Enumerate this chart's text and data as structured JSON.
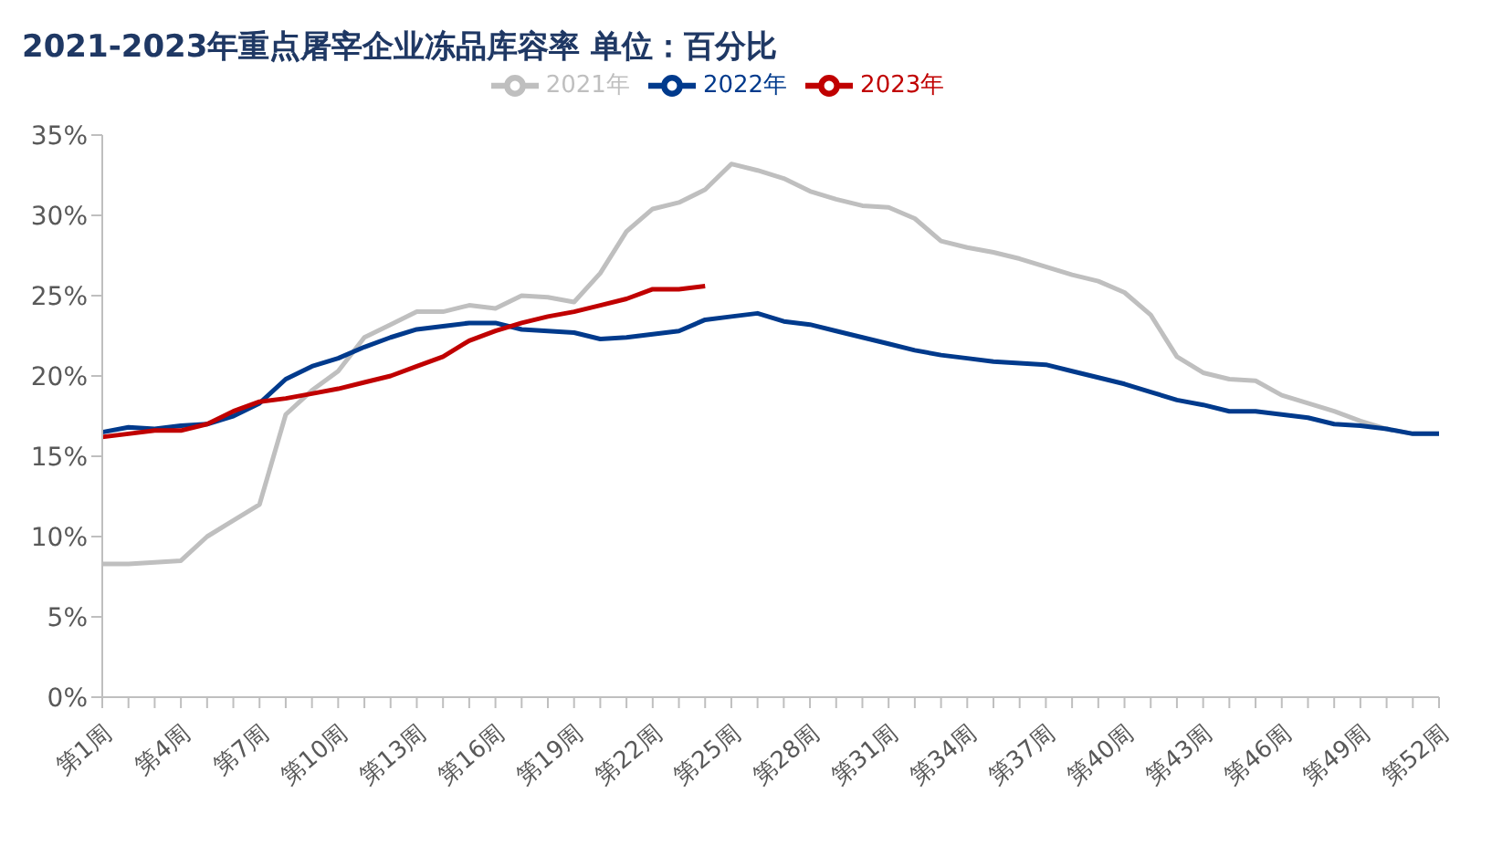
{
  "chart_data": {
    "type": "line",
    "title": "2021-2023年重点屠宰企业冻品库容率 单位：百分比",
    "categories": [
      "第1周",
      null,
      null,
      "第4周",
      null,
      null,
      "第7周",
      null,
      null,
      "第10周",
      null,
      null,
      "第13周",
      null,
      null,
      "第16周",
      null,
      null,
      "第19周",
      null,
      null,
      "第22周",
      null,
      null,
      "第25周",
      null,
      null,
      "第28周",
      null,
      null,
      "第31周",
      null,
      null,
      "第34周",
      null,
      null,
      "第37周",
      null,
      null,
      "第40周",
      null,
      null,
      "第43周",
      null,
      null,
      "第46周",
      null,
      null,
      "第49周",
      null,
      null,
      "第52周"
    ],
    "series": [
      {
        "name": "2021年",
        "color": "#bfbfbf",
        "values": [
          8.3,
          8.3,
          8.4,
          8.5,
          10.0,
          11.0,
          12.0,
          17.6,
          19.1,
          20.3,
          22.4,
          23.2,
          24.0,
          24.0,
          24.4,
          24.2,
          25.0,
          24.9,
          24.6,
          26.4,
          29.0,
          30.4,
          30.8,
          31.6,
          33.2,
          32.8,
          32.3,
          31.5,
          31.0,
          30.6,
          30.5,
          29.8,
          28.4,
          28.0,
          27.7,
          27.3,
          26.8,
          26.3,
          25.9,
          25.2,
          23.8,
          21.2,
          20.2,
          19.8,
          19.7,
          18.8,
          18.3,
          17.8,
          17.2,
          16.7,
          16.4,
          16.4
        ]
      },
      {
        "name": "2022年",
        "color": "#003a8c",
        "values": [
          16.5,
          16.8,
          16.7,
          16.9,
          17.0,
          17.5,
          18.3,
          19.8,
          20.6,
          21.1,
          21.8,
          22.4,
          22.9,
          23.1,
          23.3,
          23.3,
          22.9,
          22.8,
          22.7,
          22.3,
          22.4,
          22.6,
          22.8,
          23.5,
          23.7,
          23.9,
          23.4,
          23.2,
          22.8,
          22.4,
          22.0,
          21.6,
          21.3,
          21.1,
          20.9,
          20.8,
          20.7,
          20.3,
          19.9,
          19.5,
          19.0,
          18.5,
          18.2,
          17.8,
          17.8,
          17.6,
          17.4,
          17.0,
          16.9,
          16.7,
          16.4,
          16.4
        ]
      },
      {
        "name": "2023年",
        "color": "#c00000",
        "values": [
          16.2,
          16.4,
          16.6,
          16.6,
          17.0,
          17.8,
          18.4,
          18.6,
          18.9,
          19.2,
          19.6,
          20.0,
          20.6,
          21.2,
          22.2,
          22.8,
          23.3,
          23.7,
          24.0,
          24.4,
          24.8,
          25.4,
          25.4,
          25.6,
          null,
          null,
          null,
          null,
          null,
          null,
          null,
          null,
          null,
          null,
          null,
          null,
          null,
          null,
          null,
          null,
          null,
          null,
          null,
          null,
          null,
          null,
          null,
          null,
          null,
          null,
          null,
          null
        ]
      }
    ],
    "ylim": [
      0,
      35
    ],
    "yticks": [
      {
        "value": 0,
        "label": "0%"
      },
      {
        "value": 5,
        "label": "5%"
      },
      {
        "value": 10,
        "label": "10%"
      },
      {
        "value": 15,
        "label": "15%"
      },
      {
        "value": 20,
        "label": "20%"
      },
      {
        "value": 25,
        "label": "25%"
      },
      {
        "value": 30,
        "label": "30%"
      },
      {
        "value": 35,
        "label": "35%"
      }
    ],
    "legend": "top",
    "grid": false,
    "marker": "none",
    "line_style": "solid"
  }
}
